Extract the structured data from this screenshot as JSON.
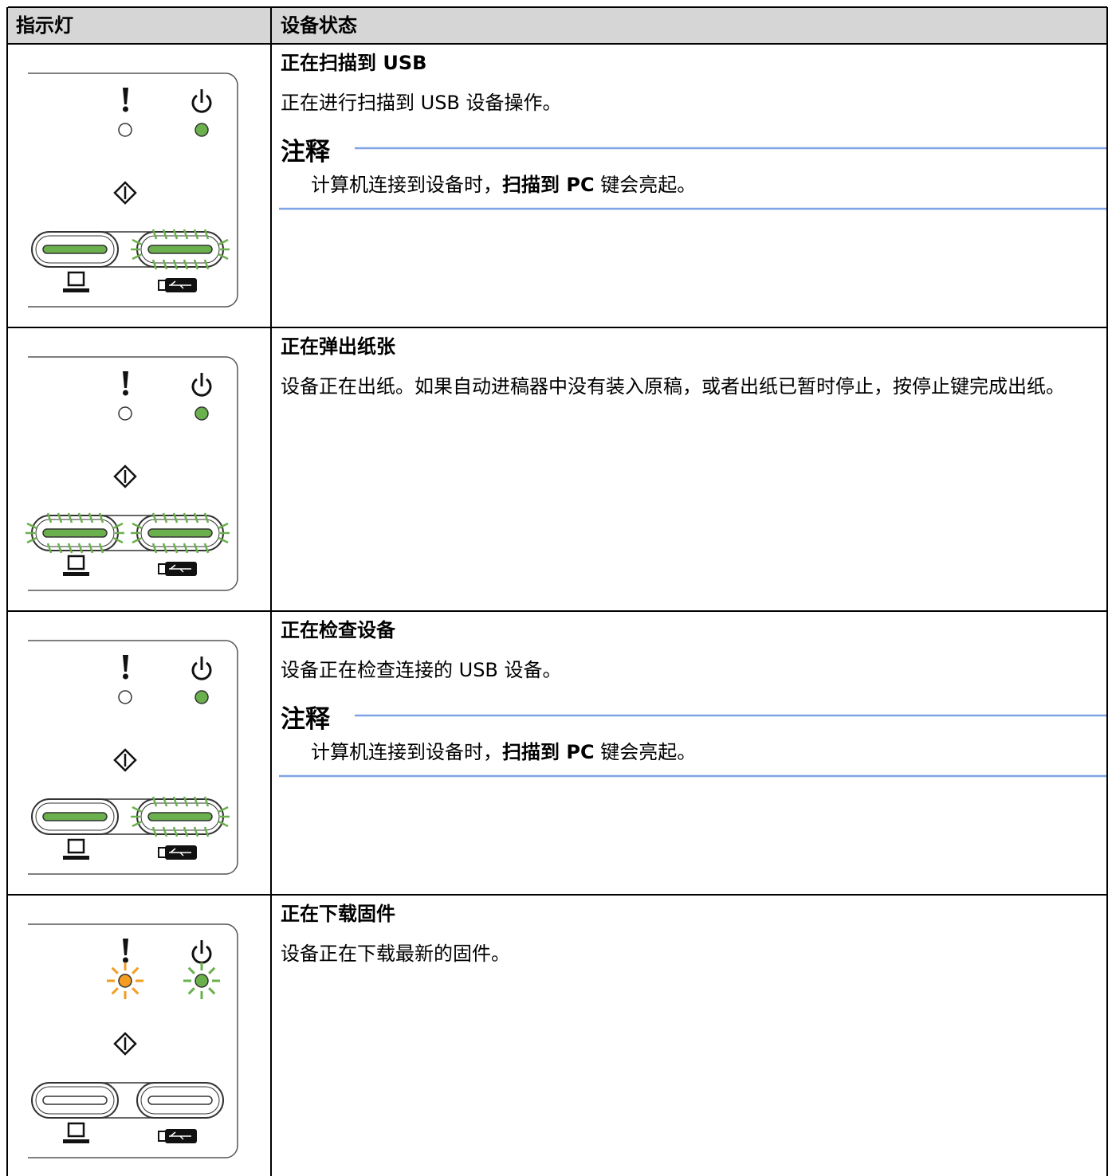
{
  "header": {
    "columns": [
      "指示灯",
      "设备状态"
    ]
  },
  "table": {
    "rows": [
      {
        "title": "正在扫描到 USB",
        "description": "正在进行扫描到 USB 设备操作。",
        "note": {
          "heading": "注释",
          "text": [
            {
              "text": "计算机连接到设备时，"
            },
            {
              "text": "扫描到 PC",
              "bold": true
            },
            {
              "text": " 键会亮起。"
            }
          ]
        }
      },
      {
        "title": "正在弹出纸张",
        "description": "设备正在出纸。如果自动进稿器中没有装入原稿，或者出纸已暂时停止，按停止键完成出纸。"
      },
      {
        "title": "正在检查设备",
        "description": "设备正在检查连接的 USB 设备。",
        "note": {
          "heading": "注释",
          "text": [
            {
              "text": "计算机连接到设备时，"
            },
            {
              "text": "扫描到 PC",
              "bold": true
            },
            {
              "text": " 键会亮起。"
            }
          ]
        }
      },
      {
        "title": "正在下载固件",
        "description": "设备正在下载最新的固件。"
      }
    ]
  }
}
